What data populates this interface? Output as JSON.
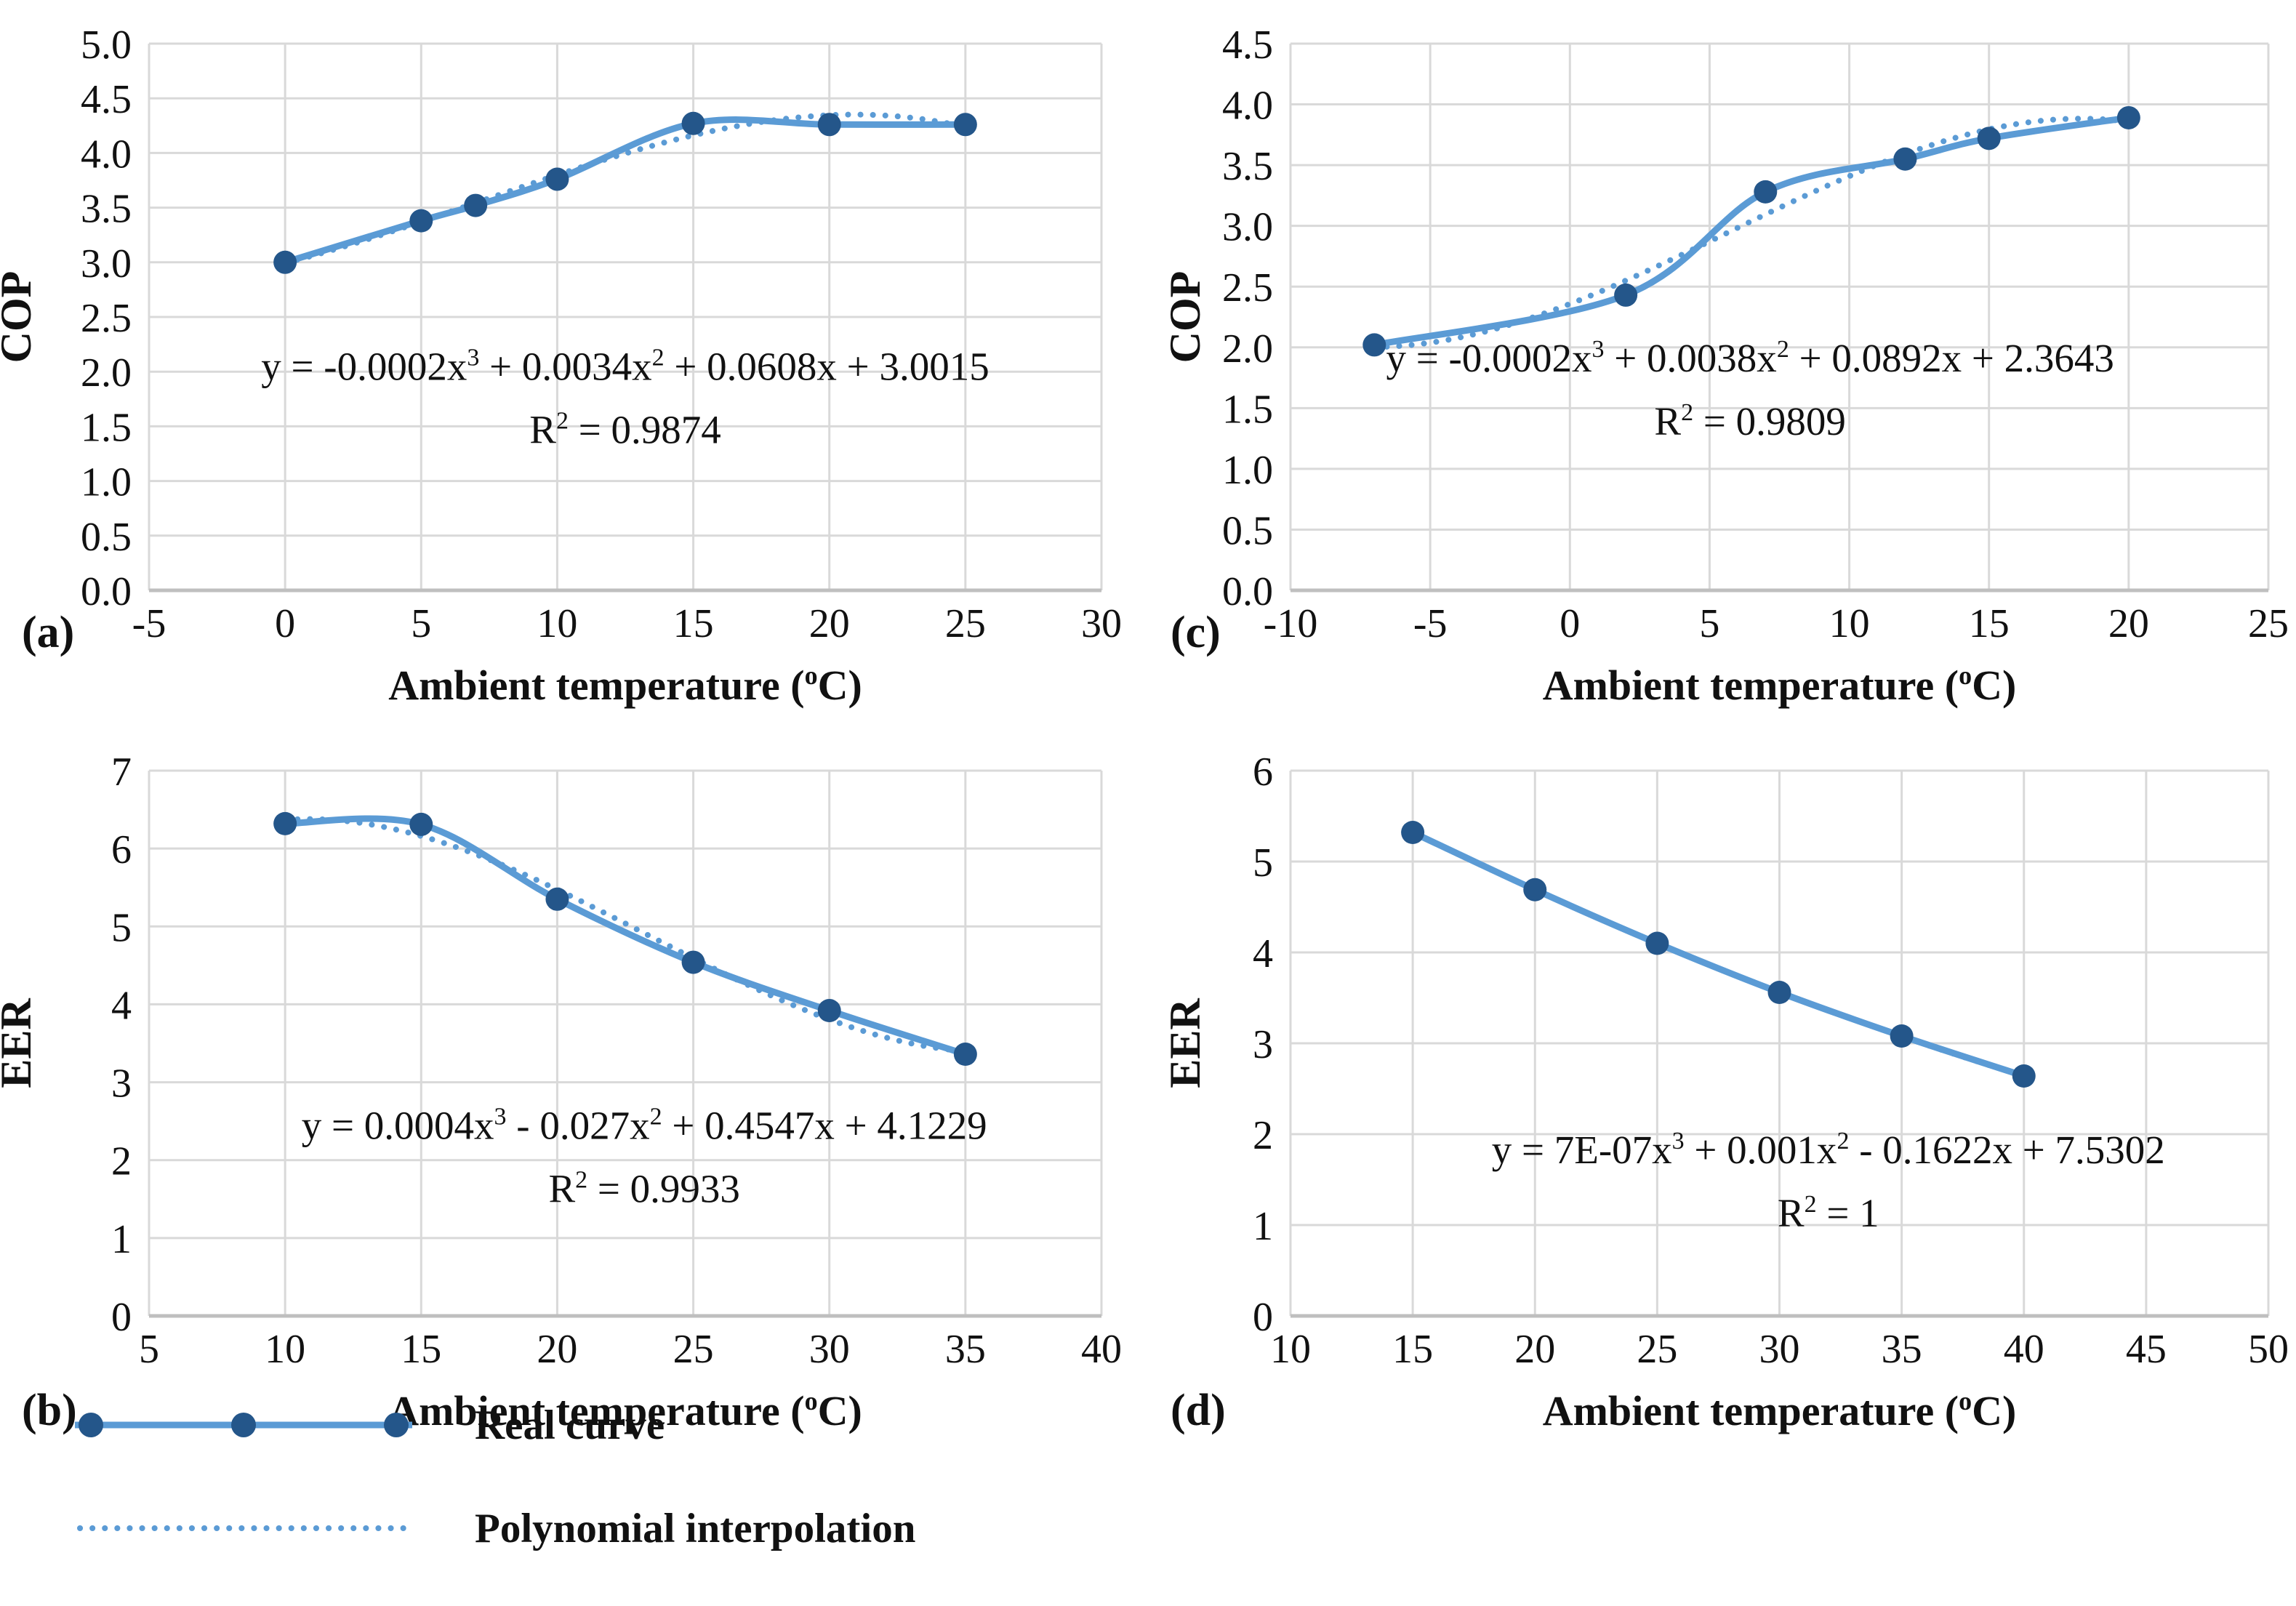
{
  "colors": {
    "line": "#5b9bd5",
    "trend": "#5b9bd5",
    "marker": "#24568a",
    "grid": "#d9d9d9",
    "axis_line": "#bfbfbf",
    "text": "#111111"
  },
  "legend": {
    "items": [
      {
        "label": "Real curve",
        "key": "solid-line-with-markers"
      },
      {
        "label": "Polynomial interpolation",
        "key": "dotted-line"
      }
    ]
  },
  "chart_data": [
    {
      "type": "line",
      "panel_label": "(a)",
      "xlabel": "Ambient temperature (oC)",
      "ylabel": "COP",
      "x_ticks": [
        "-5",
        "0",
        "5",
        "10",
        "15",
        "20",
        "25",
        "30"
      ],
      "y_ticks": [
        "0.0",
        "0.5",
        "1.0",
        "1.5",
        "2.0",
        "2.5",
        "3.0",
        "3.5",
        "4.0",
        "4.5",
        "5.0"
      ],
      "grid": true,
      "legend_position": "none",
      "series": [
        {
          "name": "Real curve",
          "x": [
            0,
            5,
            7,
            10,
            15,
            20,
            25
          ],
          "y": [
            3.0,
            3.38,
            3.52,
            3.76,
            4.27,
            4.26,
            4.26
          ]
        },
        {
          "name": "Polynomial interpolation",
          "fit": "cubic"
        }
      ],
      "equation": "y = -0.0002x³ + 0.0034x² + 0.0608x + 3.0015",
      "r2_label": "R² = 0.9874",
      "eq_pos": [
        0.5,
        0.615
      ]
    },
    {
      "type": "line",
      "panel_label": "(b)",
      "xlabel": "Ambient temperature (oC)",
      "ylabel": "EER",
      "x_ticks": [
        "5",
        "10",
        "15",
        "20",
        "25",
        "30",
        "35",
        "40"
      ],
      "y_ticks": [
        "0",
        "1",
        "2",
        "3",
        "4",
        "5",
        "6",
        "7"
      ],
      "grid": true,
      "legend_position": "none",
      "series": [
        {
          "name": "Real curve",
          "x": [
            10,
            15,
            20,
            25,
            30,
            35
          ],
          "y": [
            6.32,
            6.31,
            5.35,
            4.54,
            3.92,
            3.36
          ]
        },
        {
          "name": "Polynomial interpolation",
          "fit": "cubic"
        }
      ],
      "equation": "y = 0.0004x³ - 0.027x² + 0.4547x + 4.1229",
      "r2_label": "R² = 0.9933",
      "eq_pos": [
        0.52,
        0.675
      ]
    },
    {
      "type": "line",
      "panel_label": "(c)",
      "xlabel": "Ambient temperature (oC)",
      "ylabel": "COP",
      "x_ticks": [
        "-10",
        "-5",
        "0",
        "5",
        "10",
        "15",
        "20",
        "25"
      ],
      "y_ticks": [
        "0.0",
        "0.5",
        "1.0",
        "1.5",
        "2.0",
        "2.5",
        "3.0",
        "3.5",
        "4.0",
        "4.5"
      ],
      "grid": true,
      "legend_position": "none",
      "series": [
        {
          "name": "Real curve",
          "x": [
            -7,
            2,
            7,
            12,
            15,
            20
          ],
          "y": [
            2.02,
            2.43,
            3.28,
            3.55,
            3.72,
            3.89
          ]
        },
        {
          "name": "Polynomial interpolation",
          "fit": "cubic"
        }
      ],
      "equation": "y = -0.0002x³ + 0.0038x² + 0.0892x + 2.3643",
      "r2_label": "R² = 0.9809",
      "eq_pos": [
        0.47,
        0.6
      ]
    },
    {
      "type": "line",
      "panel_label": "(d)",
      "xlabel": "Ambient temperature (oC)",
      "ylabel": "EER",
      "x_ticks": [
        "10",
        "15",
        "20",
        "25",
        "30",
        "35",
        "40",
        "45",
        "50"
      ],
      "y_ticks": [
        "0",
        "1",
        "2",
        "3",
        "4",
        "5",
        "6"
      ],
      "grid": true,
      "legend_position": "none",
      "series": [
        {
          "name": "Real curve",
          "x": [
            15,
            20,
            25,
            30,
            35,
            40
          ],
          "y": [
            5.32,
            4.69,
            4.1,
            3.56,
            3.08,
            2.64
          ]
        },
        {
          "name": "Polynomial interpolation",
          "fit": "cubic"
        }
      ],
      "equation": "y = 7E-07x³ + 0.001x² - 0.1622x + 7.5302",
      "r2_label": "R² = 1",
      "eq_pos": [
        0.55,
        0.72
      ]
    }
  ]
}
